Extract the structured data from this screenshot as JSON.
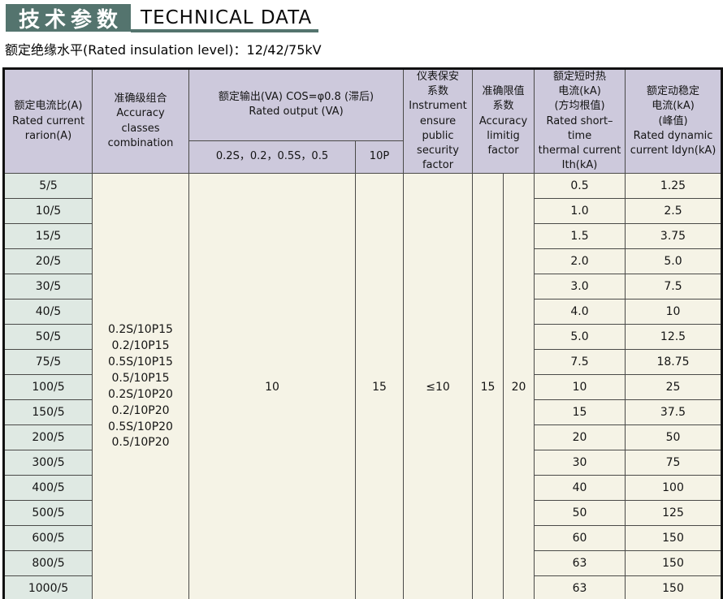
{
  "header": {
    "title_zh": "技术参数",
    "title_en": "TECHNICAL DATA",
    "subtitle": "额定绝缘水平(Rated insulation level)：12/42/75kV"
  },
  "colors": {
    "teal": "#54746e",
    "header_bg": "#cdc9dc",
    "ratio_col_bg": "#dfe9e3",
    "body_bg": "#f5f3e6",
    "grid_border": "#4a4a48",
    "frame_border": "#111111"
  },
  "table": {
    "headers": {
      "ratio": {
        "lines": [
          "额定电流比(A)",
          "Rated current",
          "rarion(A)"
        ]
      },
      "accuracy_classes": {
        "lines": [
          "准确级组合",
          "Accuracy",
          "classes",
          "combination"
        ]
      },
      "rated_output": {
        "lines": [
          "额定输出(VA) COS=φ0.8 (滞后)",
          "Rated output (VA)"
        ],
        "sub_classes": "0.2S，0.2，0.5S，0.5",
        "sub_10p": "10P"
      },
      "instrument": {
        "lines": [
          "仪表保安",
          "系数",
          "Instrument",
          "ensure public",
          "security",
          "factor"
        ]
      },
      "accuracy_limit": {
        "lines": [
          "准确限值",
          "系数",
          "Accuracy",
          "limitig",
          "factor"
        ]
      },
      "short_time": {
        "lines": [
          "额定短时热",
          "电流(kA)",
          "(方均根值)",
          "Rated short–time",
          "thermal current",
          "Ith(kA)"
        ]
      },
      "dynamic": {
        "lines": [
          "额定动稳定",
          "电流(kA)",
          "(峰值)",
          "Rated dynamic",
          "current Idyn(kA)"
        ]
      }
    },
    "merged": {
      "accuracy_combos": [
        "0.2S/10P15",
        "0.2/10P15",
        "0.5S/10P15",
        "0.5/10P15",
        "0.2S/10P20",
        "0.2/10P20",
        "0.5S/10P20",
        "0.5/10P20"
      ],
      "rated_output_value": "10",
      "rated_output_10p_value": "15",
      "instrument_factor_value": "≤10",
      "accuracy_limit_value_a": "15",
      "accuracy_limit_value_b": "20"
    },
    "rows": [
      {
        "ratio": "5/5",
        "ith": "0.5",
        "idyn": "1.25"
      },
      {
        "ratio": "10/5",
        "ith": "1.0",
        "idyn": "2.5"
      },
      {
        "ratio": "15/5",
        "ith": "1.5",
        "idyn": "3.75"
      },
      {
        "ratio": "20/5",
        "ith": "2.0",
        "idyn": "5.0"
      },
      {
        "ratio": "30/5",
        "ith": "3.0",
        "idyn": "7.5"
      },
      {
        "ratio": "40/5",
        "ith": "4.0",
        "idyn": "10"
      },
      {
        "ratio": "50/5",
        "ith": "5.0",
        "idyn": "12.5"
      },
      {
        "ratio": "75/5",
        "ith": "7.5",
        "idyn": "18.75"
      },
      {
        "ratio": "100/5",
        "ith": "10",
        "idyn": "25"
      },
      {
        "ratio": "150/5",
        "ith": "15",
        "idyn": "37.5"
      },
      {
        "ratio": "200/5",
        "ith": "20",
        "idyn": "50"
      },
      {
        "ratio": "300/5",
        "ith": "30",
        "idyn": "75"
      },
      {
        "ratio": "400/5",
        "ith": "40",
        "idyn": "100"
      },
      {
        "ratio": "500/5",
        "ith": "50",
        "idyn": "125"
      },
      {
        "ratio": "600/5",
        "ith": "60",
        "idyn": "150"
      },
      {
        "ratio": "800/5",
        "ith": "63",
        "idyn": "150"
      },
      {
        "ratio": "1000/5",
        "ith": "63",
        "idyn": "150"
      }
    ]
  }
}
